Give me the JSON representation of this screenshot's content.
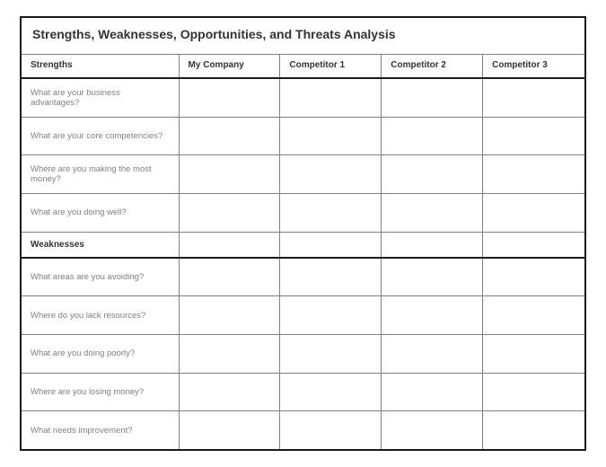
{
  "title": "Strengths, Weaknesses, Opportunities, and Threats Analysis",
  "columns": [
    "Strengths",
    "My Company",
    "Competitor 1",
    "Competitor 2",
    "Competitor 3"
  ],
  "sections": [
    {
      "heading": null,
      "rows": [
        {
          "prompt": "What are your business advantages?",
          "cells": [
            "",
            "",
            "",
            ""
          ]
        },
        {
          "prompt": "What are your core competencies?",
          "cells": [
            "",
            "",
            "",
            ""
          ]
        },
        {
          "prompt": "Where are you making the most money?",
          "cells": [
            "",
            "",
            "",
            ""
          ]
        },
        {
          "prompt": "What are you doing well?",
          "cells": [
            "",
            "",
            "",
            ""
          ]
        }
      ]
    },
    {
      "heading": "Weaknesses",
      "rows": [
        {
          "prompt": "What areas are you avoiding?",
          "cells": [
            "",
            "",
            "",
            ""
          ]
        },
        {
          "prompt": "Where do you lack resources?",
          "cells": [
            "",
            "",
            "",
            ""
          ]
        },
        {
          "prompt": "What are you doing poorly?",
          "cells": [
            "",
            "",
            "",
            ""
          ]
        },
        {
          "prompt": "Where are you losing money?",
          "cells": [
            "",
            "",
            "",
            ""
          ]
        },
        {
          "prompt": "What needs improvement?",
          "cells": [
            "",
            "",
            "",
            ""
          ]
        }
      ]
    }
  ],
  "style": {
    "outer_border_color": "#1a1a1a",
    "inner_border_color": "#808080",
    "title_fontsize": 14,
    "header_fontsize": 10,
    "cell_fontsize": 9.5,
    "prompt_text_color": "#808080",
    "header_text_color": "#333333",
    "background": "#ffffff",
    "col_widths_pct": [
      28,
      18,
      18,
      18,
      18
    ]
  }
}
